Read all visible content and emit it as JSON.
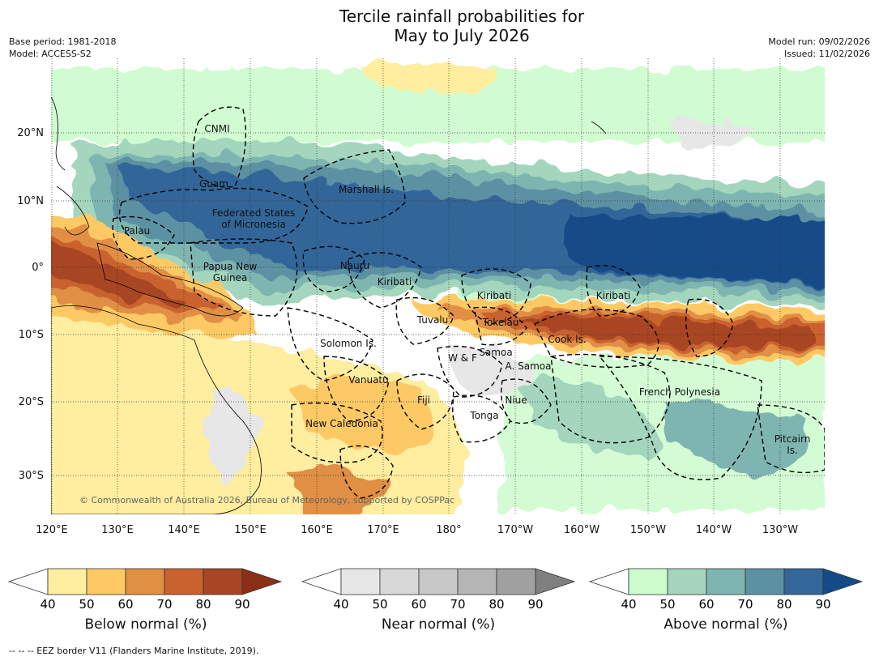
{
  "title_line1": "Tercile rainfall probabilities for",
  "title_line2": "May to July 2026",
  "base_period": "Base period: 1981-2018",
  "model": "Model: ACCESS-S2",
  "model_run": "Model run: 09/02/2026",
  "issued": "Issued: 11/02/2026",
  "copyright": "© Commonwealth of Australia 2026, Bureau of Meteorology, supported by COSPPac",
  "footnote": "--  --  -- EEZ border V11 (Flanders Marine Institute, 2019).",
  "lon_labels": [
    "120°E",
    "130°E",
    "140°E",
    "150°E",
    "160°E",
    "170°E",
    "180°",
    "170°W",
    "160°W",
    "150°W",
    "140°W",
    "130°W"
  ],
  "lat_labels": [
    "20°N",
    "10°N",
    "0°",
    "10°S",
    "20°S",
    "30°S"
  ],
  "region_labels": [
    "CNMI",
    "Guam",
    "Marshall Is.",
    "Federated States",
    "of Micronesia",
    "Palau",
    "Papua New",
    "Guinea",
    "Nauru",
    "Kiribati",
    "Kiribati",
    "Kiribati",
    "Tuvalu",
    "Tokelau",
    "Cook Is.",
    "Solomon Is.",
    "W & F",
    "Samoa",
    "A. Samoa",
    "Vanuatu",
    "Fiji",
    "Niue",
    "French Polynesia",
    "New Caledonia",
    "Tonga",
    "Pitcairn",
    "Is."
  ],
  "colorbars": [
    {
      "title": "Below normal (%)",
      "ticks": [
        "40",
        "50",
        "60",
        "70",
        "80",
        "90"
      ],
      "colors": [
        "#ffffff",
        "#ffeda0",
        "#fdc965",
        "#e08f45",
        "#c9622f",
        "#a84524",
        "#8b2f17"
      ]
    },
    {
      "title": "Near normal (%)",
      "ticks": [
        "40",
        "50",
        "60",
        "70",
        "80",
        "90"
      ],
      "colors": [
        "#ffffff",
        "#e7e7e7",
        "#d8d8d8",
        "#c8c8c8",
        "#b5b5b5",
        "#a0a0a0",
        "#808080"
      ]
    },
    {
      "title": "Above normal (%)",
      "ticks": [
        "40",
        "50",
        "60",
        "70",
        "80",
        "90"
      ],
      "colors": [
        "#ffffff",
        "#ccfccc",
        "#a3d6bd",
        "#7fb5b1",
        "#5b91a3",
        "#336699",
        "#124b87"
      ]
    }
  ]
}
